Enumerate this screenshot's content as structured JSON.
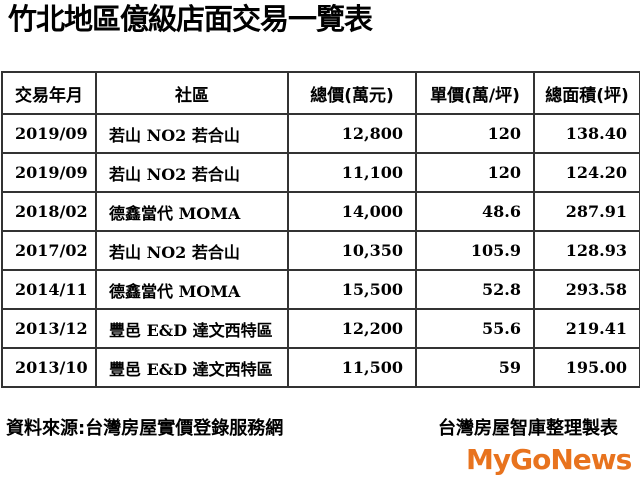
{
  "title": "竹北地區億級店面交易一覽表",
  "table": {
    "headers": [
      "交易年月",
      "社區",
      "總價(萬元)",
      "單價(萬/坪)",
      "總面積(坪)"
    ],
    "rows": [
      [
        "2019/09",
        "若山 NO2 若合山",
        "12,800",
        "120",
        "138.40"
      ],
      [
        "2019/09",
        "若山 NO2 若合山",
        "11,100",
        "120",
        "124.20"
      ],
      [
        "2018/02",
        "德鑫當代 MOMA",
        "14,000",
        "48.6",
        "287.91"
      ],
      [
        "2017/02",
        "若山 NO2 若合山",
        "10,350",
        "105.9",
        "128.93"
      ],
      [
        "2014/11",
        "德鑫當代 MOMA",
        "15,500",
        "52.8",
        "293.58"
      ],
      [
        "2013/12",
        "豐邑 E&D 達文西特區",
        "12,200",
        "55.6",
        "219.41"
      ],
      [
        "2013/10",
        "豐邑 E&D 達文西特區",
        "11,500",
        "59",
        "195.00"
      ]
    ]
  },
  "footer": {
    "source": "資料來源:台灣房屋實價登錄服務網",
    "maker": "台灣房屋智庫整理製表",
    "watermark": "MyGoNews"
  }
}
